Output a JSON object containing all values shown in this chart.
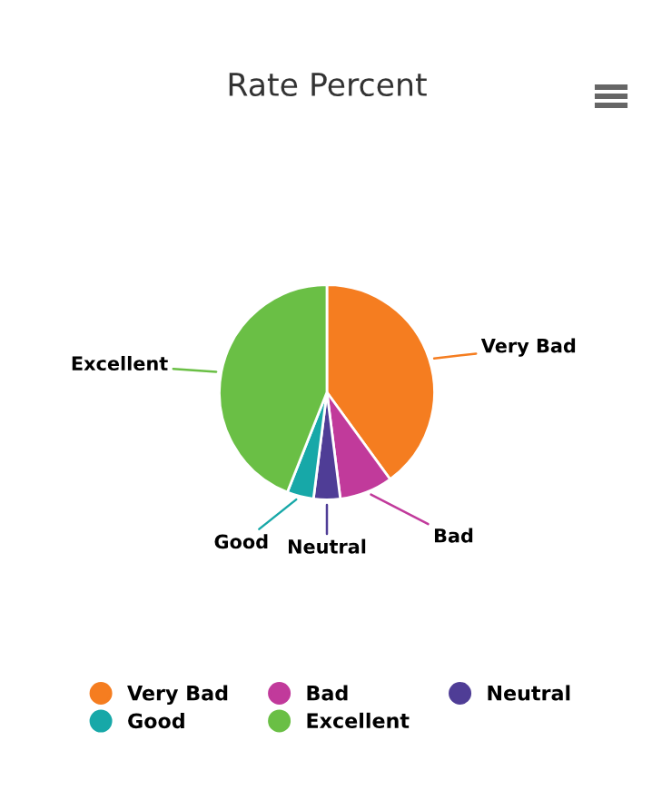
{
  "chart_data": {
    "type": "pie",
    "title": "Rate Percent",
    "categories": [
      "Very Bad",
      "Bad",
      "Neutral",
      "Good",
      "Excellent"
    ],
    "values": [
      40,
      8,
      4,
      4,
      44
    ],
    "colors": [
      "#f57d20",
      "#c13a9b",
      "#4f3d96",
      "#17a8a8",
      "#6abf45"
    ],
    "legend": "bottom"
  }
}
